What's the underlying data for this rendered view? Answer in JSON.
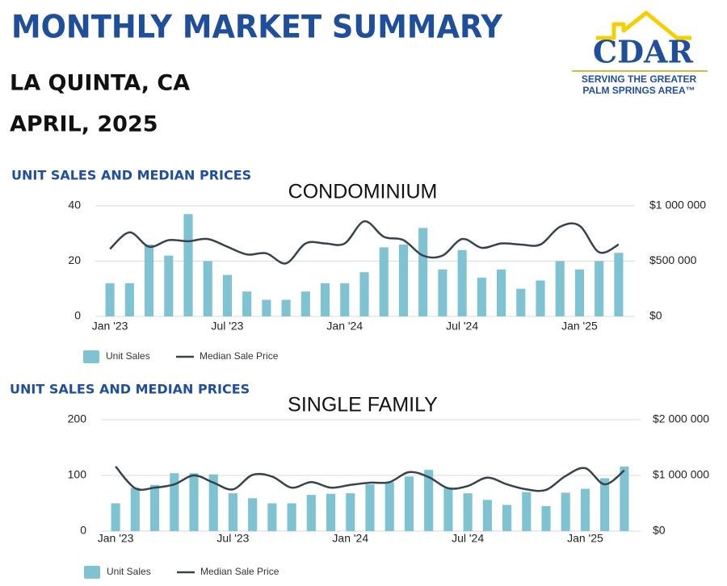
{
  "header": {
    "title": "MONTHLY MARKET SUMMARY",
    "location": "LA QUINTA, CA",
    "date": "APRIL, 2025",
    "logo": {
      "name": "CDAR",
      "line1": "SERVING THE GREATER",
      "line2": "PALM SPRINGS AREA™"
    }
  },
  "chart_data": [
    {
      "type": "combo",
      "section": "UNIT SALES AND MEDIAN PRICES",
      "title": "CONDOMINIUM",
      "categories": [
        "Jan '23",
        null,
        null,
        null,
        null,
        null,
        "Jul '23",
        null,
        null,
        null,
        null,
        null,
        "Jan '24",
        null,
        null,
        null,
        null,
        null,
        "Jul '24",
        null,
        null,
        null,
        null,
        null,
        "Jan '25",
        null,
        null
      ],
      "series": [
        {
          "name": "Unit Sales",
          "type": "bar",
          "color": "#7fc3d3",
          "values": [
            12,
            12,
            26,
            22,
            37,
            20,
            15,
            9,
            6,
            6,
            9,
            12,
            12,
            16,
            25,
            26,
            32,
            17,
            24,
            14,
            17,
            10,
            13,
            20,
            17,
            20,
            23
          ]
        },
        {
          "name": "Median Sale Price",
          "type": "line",
          "axis": "y2",
          "color": "#37434c",
          "values": [
            610000,
            760000,
            630000,
            690000,
            680000,
            700000,
            630000,
            560000,
            570000,
            480000,
            660000,
            660000,
            660000,
            860000,
            720000,
            690000,
            550000,
            550000,
            700000,
            620000,
            660000,
            650000,
            650000,
            810000,
            820000,
            580000,
            650000
          ]
        }
      ],
      "ylim": [
        0,
        40
      ],
      "yticks": [
        0,
        20,
        40
      ],
      "y2lim": [
        0,
        1000000
      ],
      "y2ticks": [
        {
          "value": 0,
          "label": "$0"
        },
        {
          "value": 500000,
          "label": "$500 000"
        },
        {
          "value": 1000000,
          "label": "$1 000 000"
        }
      ],
      "grid": true
    },
    {
      "type": "combo",
      "section": "UNIT SALES AND MEDIAN PRICES",
      "title": "SINGLE FAMILY",
      "categories": [
        "Jan '23",
        null,
        null,
        null,
        null,
        null,
        "Jul '23",
        null,
        null,
        null,
        null,
        null,
        "Jan '24",
        null,
        null,
        null,
        null,
        null,
        "Jul '24",
        null,
        null,
        null,
        null,
        null,
        "Jan '25",
        null,
        null
      ],
      "series": [
        {
          "name": "Unit Sales",
          "type": "bar",
          "color": "#7fc3d3",
          "values": [
            50,
            78,
            83,
            104,
            104,
            102,
            68,
            59,
            50,
            50,
            65,
            67,
            68,
            84,
            88,
            98,
            110,
            78,
            68,
            56,
            47,
            70,
            45,
            69,
            76,
            95,
            116
          ]
        },
        {
          "name": "Median Sale Price",
          "type": "line",
          "axis": "y2",
          "color": "#37434c",
          "values": [
            1160000,
            770000,
            780000,
            840000,
            1000000,
            870000,
            750000,
            1010000,
            980000,
            780000,
            880000,
            780000,
            830000,
            870000,
            880000,
            1060000,
            970000,
            770000,
            810000,
            960000,
            840000,
            750000,
            740000,
            990000,
            1130000,
            840000,
            1090000
          ]
        }
      ],
      "ylim": [
        0,
        200
      ],
      "yticks": [
        0,
        100,
        200
      ],
      "y2lim": [
        0,
        2000000
      ],
      "y2ticks": [
        {
          "value": 0,
          "label": "$0"
        },
        {
          "value": 1000000,
          "label": "$1 000 000"
        },
        {
          "value": 2000000,
          "label": "$2 000 000"
        }
      ],
      "grid": true
    }
  ]
}
